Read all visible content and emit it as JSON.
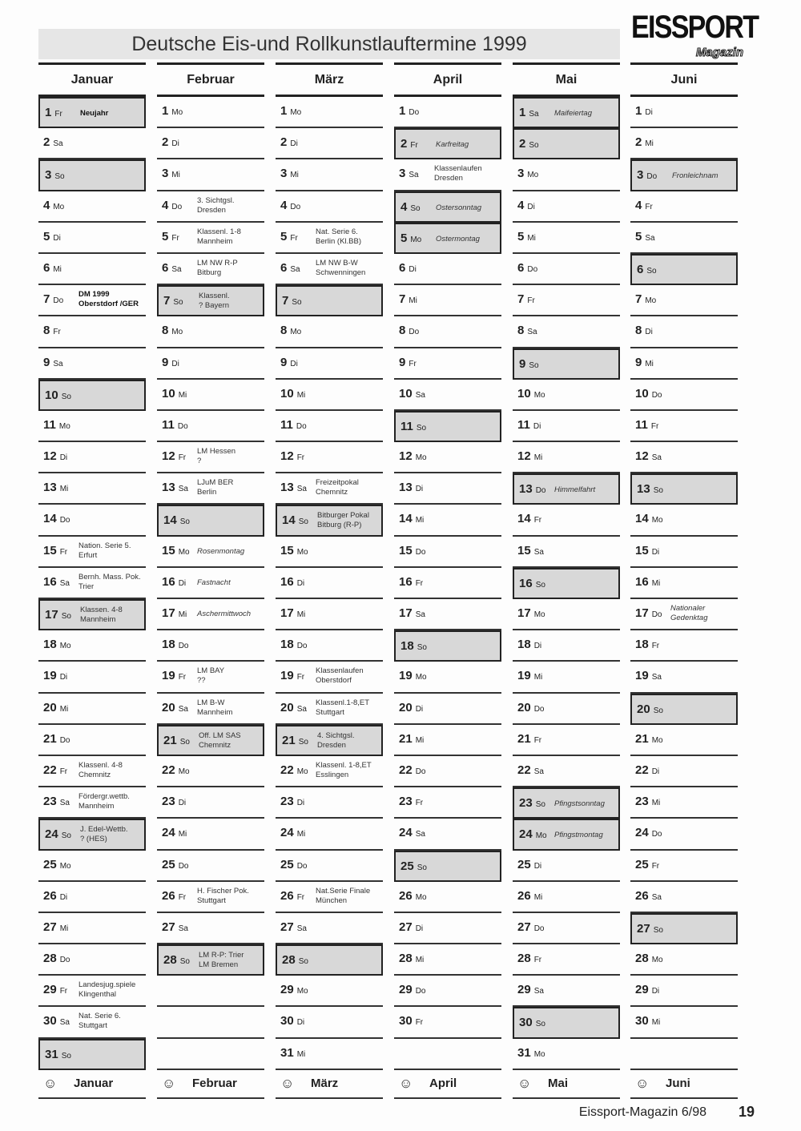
{
  "title": "Deutsche Eis-und Rollkunstlauftermine 1999",
  "logo": {
    "main": "EISSPORT",
    "sub": "Magazin"
  },
  "weekdays": [
    "Mo",
    "Di",
    "Mi",
    "Do",
    "Fr",
    "Sa",
    "So"
  ],
  "shade_color": "#d8d8d8",
  "months": [
    {
      "name": "Januar",
      "first_weekday": 4,
      "length": 31,
      "holidays": {
        "1": "Neujahr"
      },
      "events": {
        "7": "DM 1999\nOberstdorf /GER",
        "15": "Nation. Serie 5.\nErfurt",
        "16": "Bernh. Mass. Pok.\nTrier",
        "17": "Klassen. 4-8\nMannheim",
        "22": "Klassenl. 4-8\nChemnitz",
        "23": "Fördergr.wettb.\nMannheim",
        "24": "J. Edel-Wettb.\n? (HES)",
        "29": "Landesjug.spiele\nKlingenthal",
        "30": "Nat. Serie 6.\nStuttgart"
      }
    },
    {
      "name": "Februar",
      "first_weekday": 0,
      "length": 28,
      "holidays": {},
      "observances": {
        "15": "Rosenmontag",
        "16": "Fastnacht",
        "17": "Aschermittwoch"
      },
      "events": {
        "4": "3. Sichtgsl.\nDresden",
        "5": "Klassenl. 1-8\nMannheim",
        "6": "LM NW R-P\nBitburg",
        "7": "Klassenl.\n? Bayern",
        "12": "LM Hessen\n?",
        "13": "LJuM BER\nBerlin",
        "19": "LM BAY\n??",
        "20": "LM B-W\nMannheim",
        "21": "Off. LM SAS\nChemnitz",
        "26": "H. Fischer Pok.\nStuttgart",
        "28": "LM R-P: Trier\nLM Bremen"
      }
    },
    {
      "name": "März",
      "first_weekday": 0,
      "length": 31,
      "holidays": {},
      "events": {
        "5": "Nat. Serie 6.\nBerlin (Kl.BB)",
        "6": "LM NW B-W\nSchwenningen",
        "13": "Freizeitpokal\nChemnitz",
        "14": "Bitburger Pokal\nBitburg (R-P)",
        "19": "Klassenlaufen\nOberstdorf",
        "20": "Klassenl.1-8,ET\nStuttgart",
        "21": "4. Sichtgsl.\nDresden",
        "22": "Klassenl. 1-8,ET\nEsslingen",
        "26": "Nat.Serie Finale\nMünchen"
      }
    },
    {
      "name": "April",
      "first_weekday": 3,
      "length": 30,
      "holidays": {
        "2": "Karfreitag",
        "4": "Ostersonntag",
        "5": "Ostermontag"
      },
      "events": {
        "3": "Klassenlaufen\nDresden"
      }
    },
    {
      "name": "Mai",
      "first_weekday": 5,
      "length": 31,
      "holidays": {
        "1": "Maifeiertag",
        "13": "Himmelfahrt",
        "23": "Pfingstsonntag",
        "24": "Pfingstmontag"
      },
      "events": {}
    },
    {
      "name": "Juni",
      "first_weekday": 1,
      "length": 30,
      "holidays": {
        "3": "Fronleichnam"
      },
      "observances": {
        "17": "Nationaler\nGedenktag"
      },
      "events": {}
    }
  ],
  "footer": {
    "publication": "Eissport-Magazin 6/98",
    "page": "19",
    "smiley": "☺"
  }
}
